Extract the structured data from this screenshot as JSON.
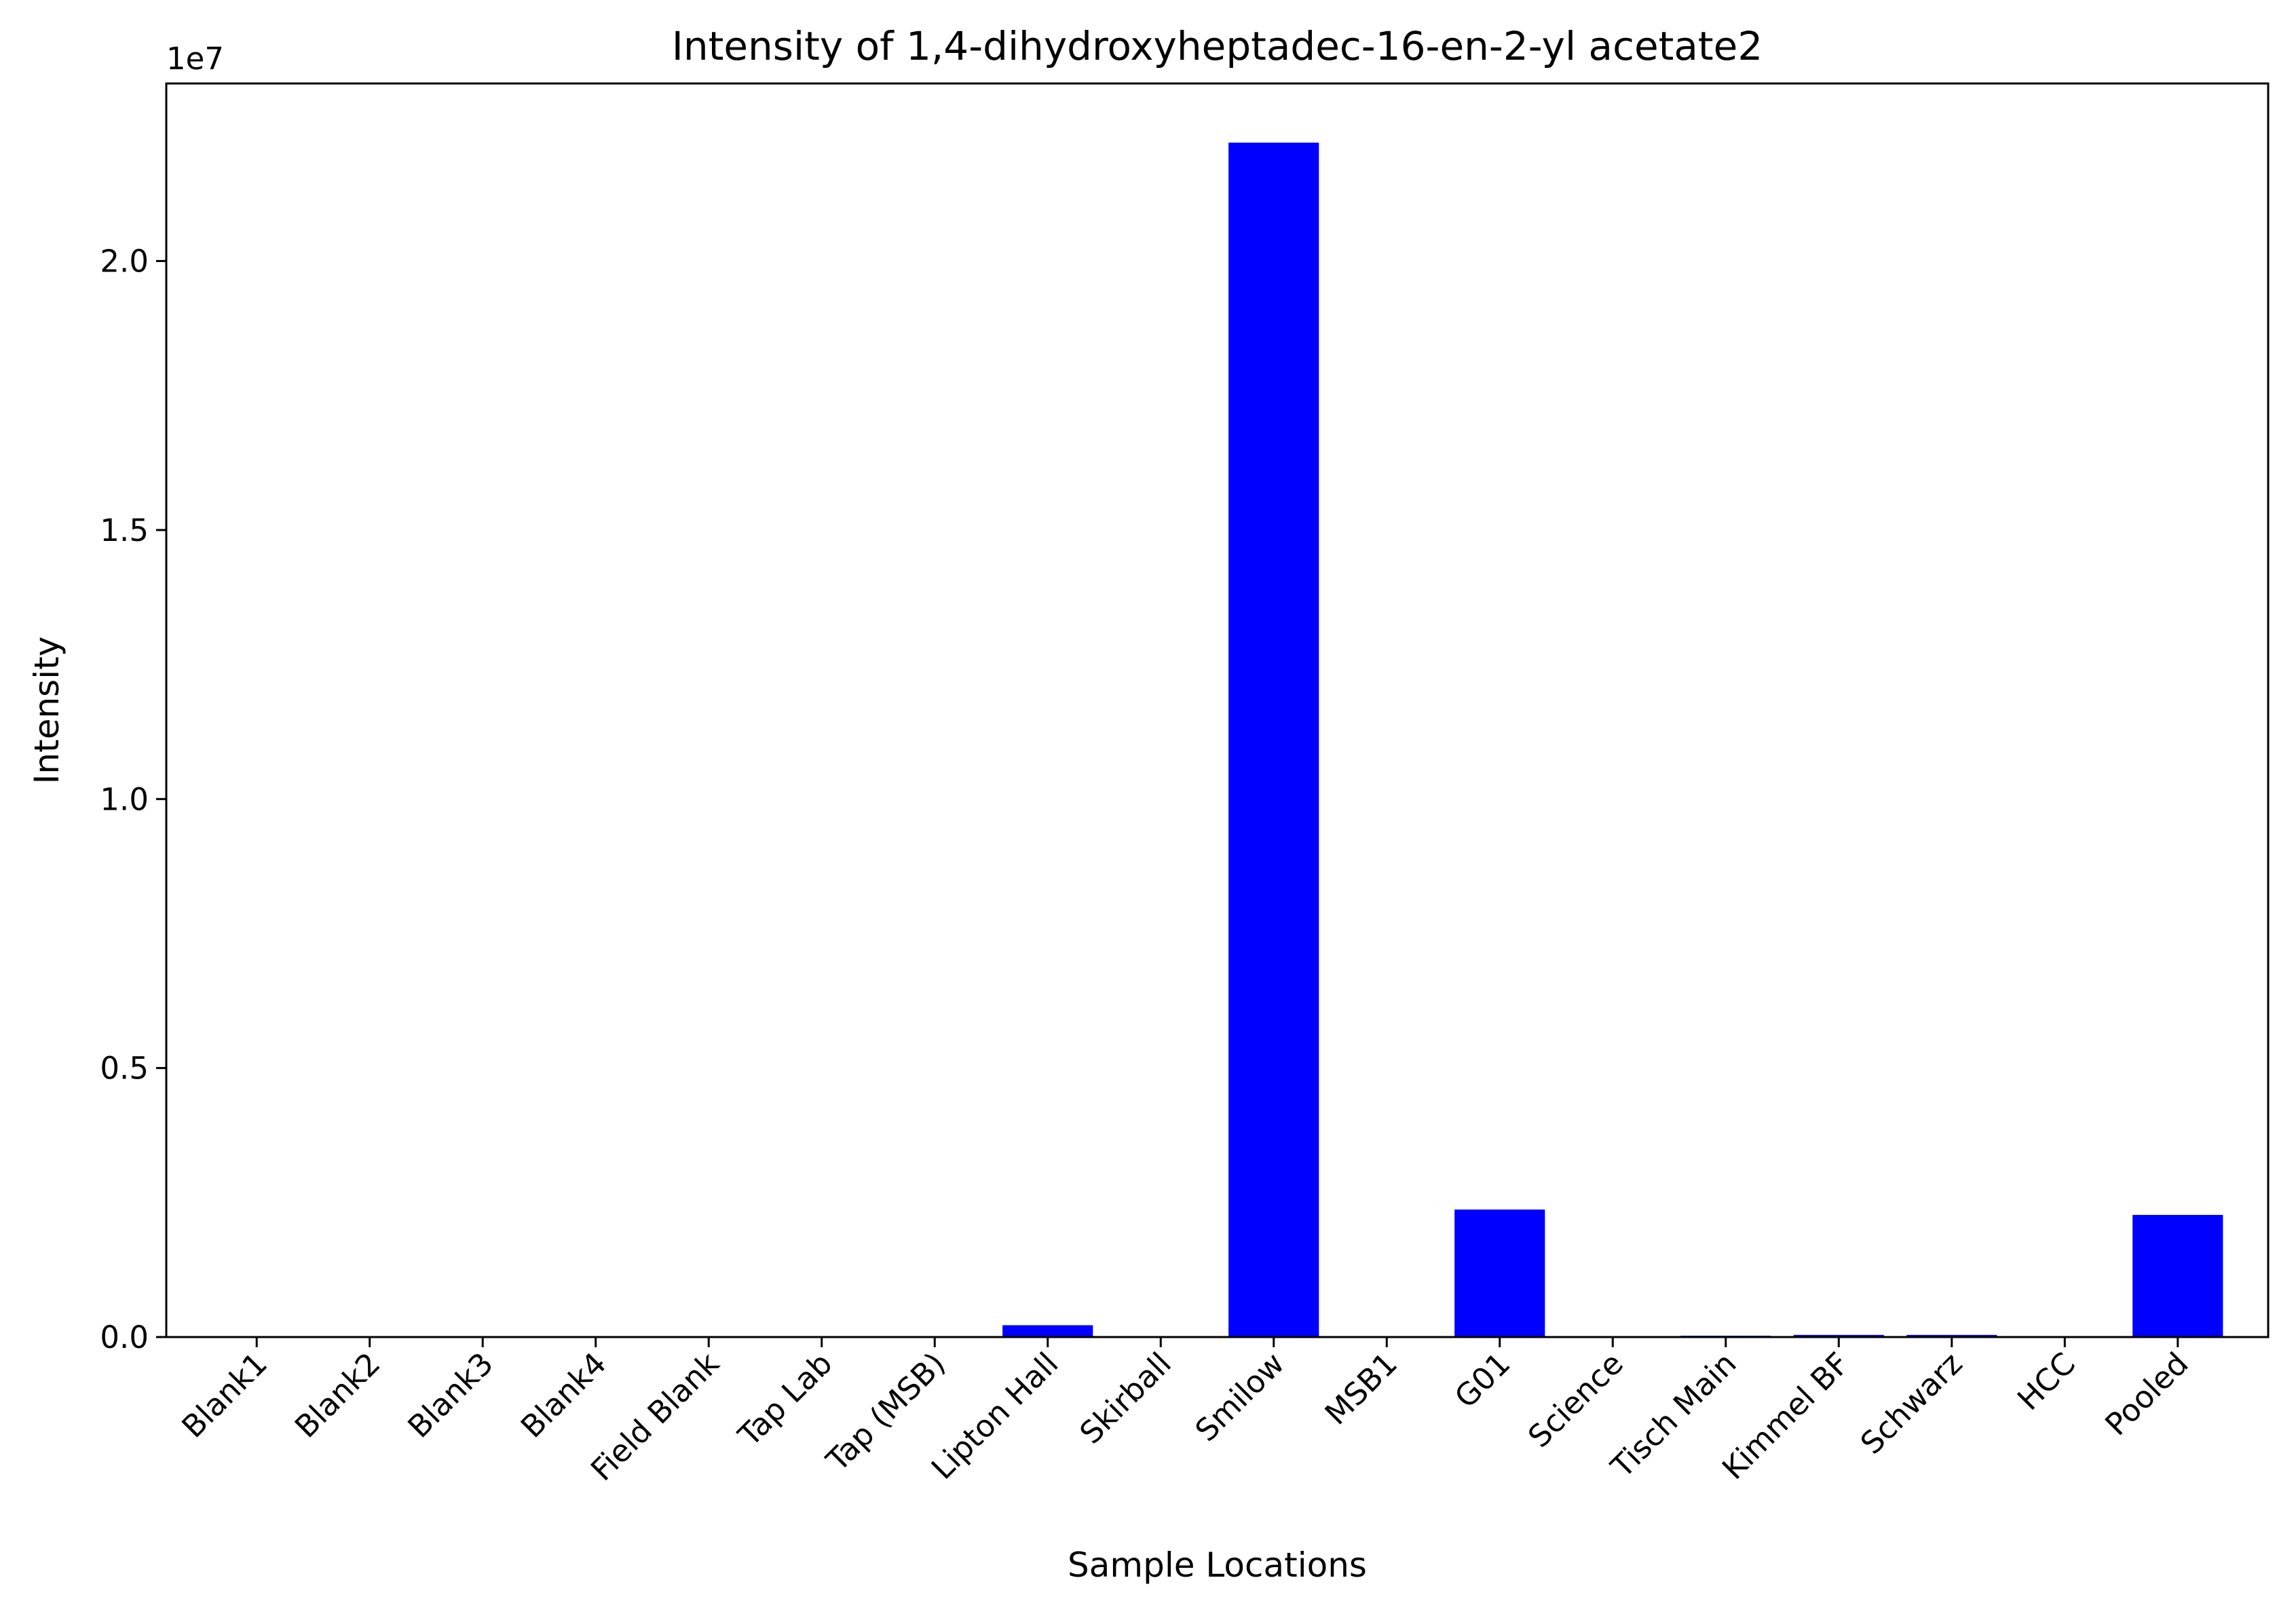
{
  "chart_data": {
    "type": "bar",
    "title": "Intensity of 1,4-dihydroxyheptadec-16-en-2-yl acetate2",
    "xlabel": "Sample Locations",
    "ylabel": "Intensity",
    "y_offset_label": "1e7",
    "categories": [
      "Blank1",
      "Blank2",
      "Blank3",
      "Blank4",
      "Field Blank",
      "Tap Lab",
      "Tap (MSB)",
      "Lipton Hall",
      "Skirball",
      "Smilow",
      "MSB1",
      "G01",
      "Science",
      "Tisch Main",
      "Kimmel BF",
      "Schwarz",
      "HCC",
      "Pooled"
    ],
    "values": [
      0,
      0,
      0,
      0,
      0,
      0,
      0,
      220000,
      0,
      22200000,
      0,
      2370000,
      0,
      25000,
      40000,
      40000,
      0,
      2270000
    ],
    "y_ticks": [
      0,
      5000000,
      10000000,
      15000000,
      20000000
    ],
    "y_tick_labels": [
      "0.0",
      "0.5",
      "1.0",
      "1.5",
      "2.0"
    ],
    "ylim": [
      0,
      23300000
    ],
    "bar_color": "#0000ff",
    "grid": false,
    "legend": "none"
  }
}
